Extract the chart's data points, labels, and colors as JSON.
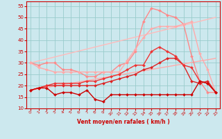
{
  "background_color": "#cce8ee",
  "grid_color": "#99cccc",
  "xlabel": "Vent moyen/en rafales ( km/h )",
  "xlim": [
    -0.5,
    23.5
  ],
  "ylim": [
    10,
    57
  ],
  "yticks": [
    10,
    15,
    20,
    25,
    30,
    35,
    40,
    45,
    50,
    55
  ],
  "xticks": [
    0,
    1,
    2,
    3,
    4,
    5,
    6,
    7,
    8,
    9,
    10,
    11,
    12,
    13,
    14,
    15,
    16,
    17,
    18,
    19,
    20,
    21,
    22,
    23
  ],
  "series": [
    {
      "x": [
        0,
        1,
        2,
        3,
        4,
        5,
        6,
        7,
        8,
        9,
        10,
        11,
        12,
        13,
        14,
        15,
        16,
        17,
        18,
        19,
        20,
        21,
        22,
        23
      ],
      "y": [
        18,
        19,
        19,
        16,
        17,
        17,
        16,
        18,
        14,
        13,
        16,
        16,
        16,
        16,
        16,
        16,
        16,
        16,
        16,
        16,
        16,
        22,
        21,
        17
      ],
      "color": "#cc0000",
      "lw": 1.0,
      "marker": "D",
      "ms": 2.0,
      "zorder": 5
    },
    {
      "x": [
        0,
        1,
        2,
        3,
        4,
        5,
        6,
        7,
        8,
        9,
        10,
        11,
        12,
        13,
        14,
        15,
        16,
        17,
        18,
        19,
        20,
        21,
        22,
        23
      ],
      "y": [
        18,
        19,
        20,
        20,
        20,
        20,
        20,
        20,
        20,
        21,
        22,
        23,
        24,
        25,
        27,
        28,
        30,
        32,
        32,
        29,
        22,
        21,
        22,
        17
      ],
      "color": "#dd2222",
      "lw": 1.0,
      "marker": "D",
      "ms": 2.0,
      "zorder": 4
    },
    {
      "x": [
        0,
        1,
        2,
        3,
        4,
        5,
        6,
        7,
        8,
        9,
        10,
        11,
        12,
        13,
        14,
        15,
        16,
        17,
        18,
        19,
        20,
        21,
        22,
        23
      ],
      "y": [
        18,
        19,
        20,
        21,
        21,
        21,
        21,
        22,
        22,
        23,
        24,
        25,
        27,
        29,
        29,
        35,
        37,
        35,
        33,
        29,
        28,
        22,
        21,
        17
      ],
      "color": "#ee3333",
      "lw": 1.0,
      "marker": "D",
      "ms": 2.0,
      "zorder": 4
    },
    {
      "x": [
        0,
        23
      ],
      "y": [
        18,
        32
      ],
      "color": "#ffaaaa",
      "lw": 1.0,
      "marker": null,
      "ms": 0,
      "zorder": 2
    },
    {
      "x": [
        0,
        23
      ],
      "y": [
        30,
        50
      ],
      "color": "#ffbbbb",
      "lw": 1.0,
      "marker": null,
      "ms": 0,
      "zorder": 2
    },
    {
      "x": [
        0,
        1,
        2,
        3,
        4,
        5,
        6,
        7,
        8,
        9,
        10,
        11,
        12,
        13,
        14,
        15,
        16,
        17,
        18,
        19,
        20,
        21,
        22,
        23
      ],
      "y": [
        30,
        29,
        30,
        30,
        27,
        27,
        26,
        24,
        24,
        26,
        26,
        29,
        30,
        35,
        48,
        54,
        53,
        51,
        50,
        47,
        33,
        22,
        17,
        17
      ],
      "color": "#ff8888",
      "lw": 1.0,
      "marker": "D",
      "ms": 2.0,
      "zorder": 3
    },
    {
      "x": [
        0,
        1,
        2,
        3,
        4,
        5,
        6,
        7,
        8,
        9,
        10,
        11,
        12,
        13,
        14,
        15,
        16,
        17,
        18,
        19,
        20,
        21,
        22,
        23
      ],
      "y": [
        30,
        28,
        27,
        26,
        26,
        26,
        26,
        26,
        26,
        26,
        26,
        26,
        31,
        36,
        41,
        45,
        46,
        46,
        46,
        47,
        48,
        34,
        27,
        17
      ],
      "color": "#ffaaaa",
      "lw": 1.0,
      "marker": "D",
      "ms": 2.0,
      "zorder": 3
    }
  ]
}
